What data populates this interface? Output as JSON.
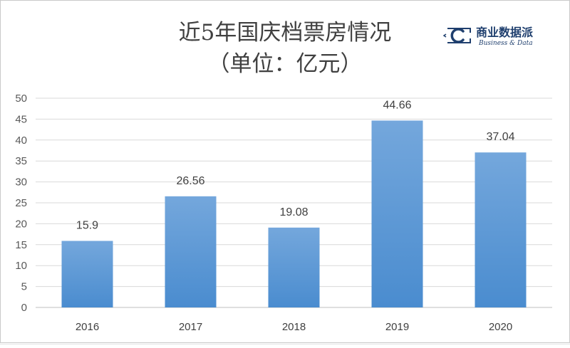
{
  "title_line1": "近5年国庆档票房情况",
  "title_line2": "（单位：亿元）",
  "logo": {
    "name": "商业数据派",
    "subtitle": "Business & Data",
    "color": "#1f3f6e"
  },
  "chart_data": {
    "type": "bar",
    "title": "近5年国庆档票房情况（单位：亿元）",
    "categories": [
      "2016",
      "2017",
      "2018",
      "2019",
      "2020"
    ],
    "values": [
      15.9,
      26.56,
      19.08,
      44.66,
      37.04
    ],
    "data_labels": [
      "15.9",
      "26.56",
      "19.08",
      "44.66",
      "37.04"
    ],
    "ylim": [
      0,
      50
    ],
    "yticks": [
      0,
      5,
      10,
      15,
      20,
      25,
      30,
      35,
      40,
      45,
      50
    ],
    "grid": true,
    "legend": "none",
    "bar_color_top": "#74a7dc",
    "bar_color_bottom": "#4a8ccf",
    "xlabel": "",
    "ylabel": ""
  }
}
